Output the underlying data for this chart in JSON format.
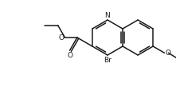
{
  "background": "#ffffff",
  "line_color": "#1a1a1a",
  "line_width": 1.1,
  "N_label": "N",
  "Br_label": "Br",
  "O_label": "O",
  "font_size_atom": 6.5,
  "font_size_small": 5.5
}
